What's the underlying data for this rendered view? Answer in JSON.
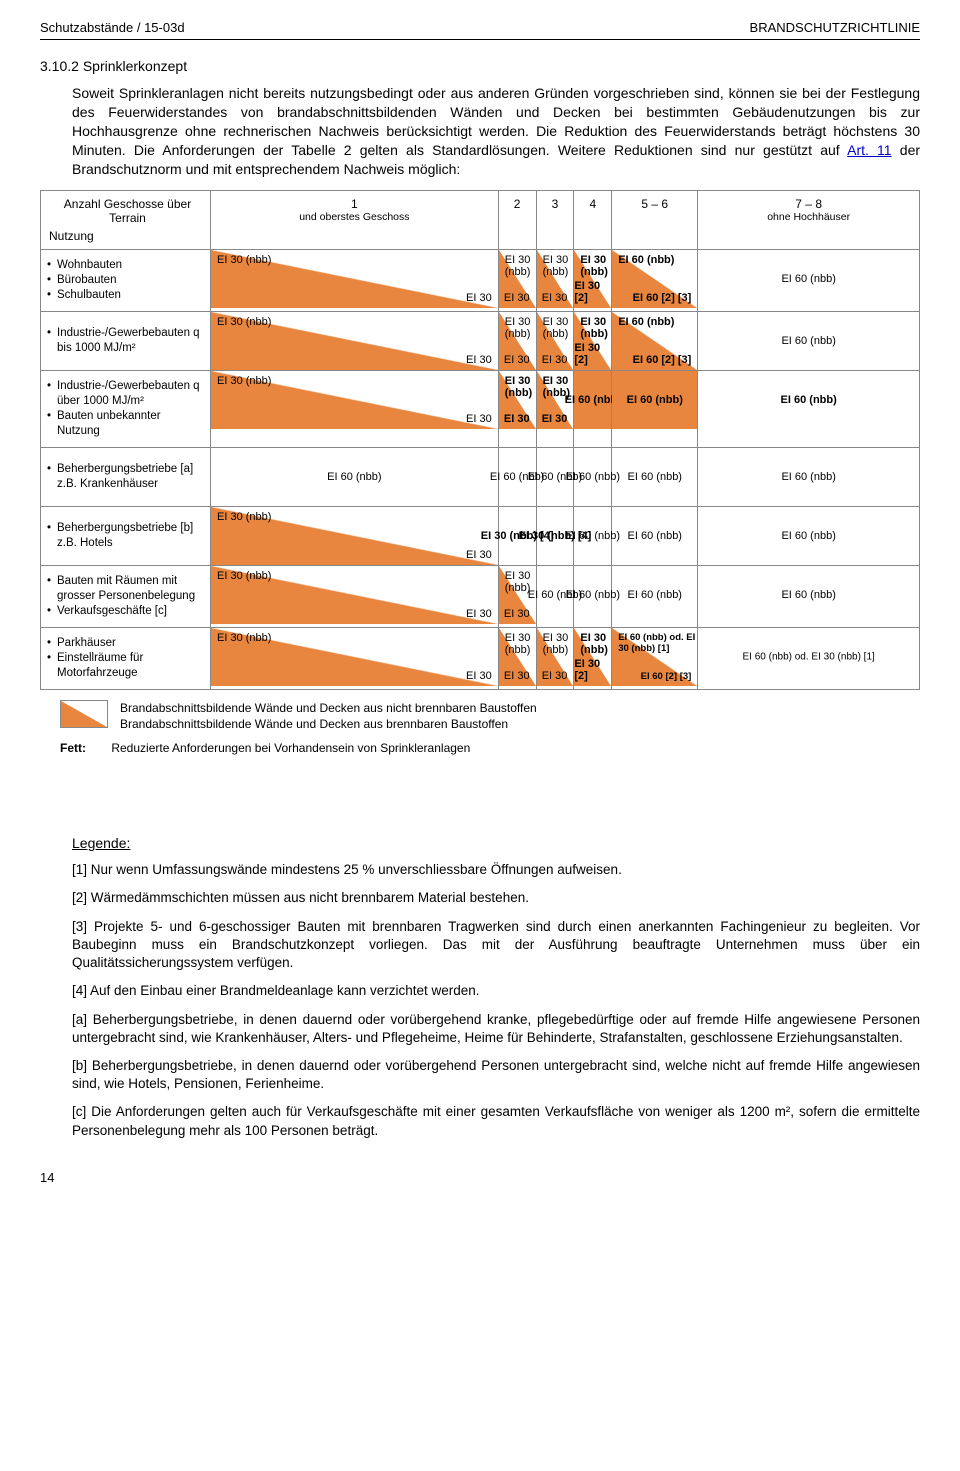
{
  "header": {
    "left": "Schutzabstände / 15-03d",
    "right": "BRANDSCHUTZRICHTLINIE"
  },
  "section": {
    "number": "3.10.2 Sprinklerkonzept",
    "para": "Soweit Sprinkleranlagen nicht bereits nutzungsbedingt oder aus anderen Gründen vorgeschrieben sind, können sie bei der Festlegung des Feuerwiderstandes von brandabschnittsbildenden Wänden und Decken bei bestimmten Gebäudenutzungen bis zur Hochhausgrenze ohne rechnerischen Nachweis berücksichtigt werden. Die Reduktion des Feuerwiderstands beträgt höchstens 30 Minuten. Die Anforderungen der Tabelle 2 gelten als Standardlösungen. Weitere Reduktionen sind nur gestützt auf ",
    "link": "Art. 11",
    "para2": " der Brandschutznorm und mit entsprechendem Nachweis möglich:"
  },
  "table": {
    "head_label": "Nutzung",
    "head_sub": "Anzahl Geschosse über Terrain",
    "cols": [
      {
        "n": "1",
        "sub": "und oberstes Geschoss"
      },
      {
        "n": "2",
        "sub": ""
      },
      {
        "n": "3",
        "sub": ""
      },
      {
        "n": "4",
        "sub": ""
      },
      {
        "n": "5 – 6",
        "sub": ""
      },
      {
        "n": "7 – 8",
        "sub": "ohne Hochhäuser"
      }
    ],
    "rows": [
      {
        "label_items": [
          "Wohnbauten",
          "Bürobauten",
          "Schulbauten"
        ],
        "cells": [
          {
            "t": "diag",
            "top": "EI 30 (nbb)",
            "bot": "EI 30"
          },
          {
            "t": "diag",
            "top": "EI 30 (nbb)",
            "bot": "EI 30"
          },
          {
            "t": "diag",
            "top": "EI 30 (nbb)",
            "bot": "EI 30"
          },
          {
            "t": "diag",
            "top": "EI 30 (nbb)",
            "bot": "EI 30 [2]",
            "bold": true
          },
          {
            "t": "diag",
            "top": "EI 60 (nbb)",
            "bot": "EI 60 [2] [3]",
            "bold": true
          },
          {
            "t": "plain",
            "mid": "EI 60 (nbb)"
          }
        ]
      },
      {
        "label_items": [
          "Industrie-/Gewerbebauten q bis 1000 MJ/m²"
        ],
        "cells": [
          {
            "t": "diag",
            "top": "EI 30 (nbb)",
            "bot": "EI 30"
          },
          {
            "t": "diag",
            "top": "EI 30 (nbb)",
            "bot": "EI 30"
          },
          {
            "t": "diag",
            "top": "EI 30 (nbb)",
            "bot": "EI 30"
          },
          {
            "t": "diag",
            "top": "EI 30 (nbb)",
            "bot": "EI 30 [2]",
            "bold": true
          },
          {
            "t": "diag",
            "top": "EI 60 (nbb)",
            "bot": "EI 60 [2] [3]",
            "bold": true
          },
          {
            "t": "plain",
            "mid": "EI 60 (nbb)"
          }
        ]
      },
      {
        "label_items": [
          "Industrie-/Gewerbebauten q über 1000 MJ/m²",
          "Bauten unbekannter Nutzung"
        ],
        "cells": [
          {
            "t": "diag",
            "top": "EI 30 (nbb)",
            "bot": "EI 30"
          },
          {
            "t": "diag",
            "top": "EI 30 (nbb)",
            "bot": "EI 30",
            "bold": true
          },
          {
            "t": "diag",
            "top": "EI 30 (nbb)",
            "bot": "EI 30",
            "bold": true
          },
          {
            "t": "orange",
            "mid": "EI 60 (nbb)",
            "bold": true
          },
          {
            "t": "orange",
            "mid": "EI 60 (nbb)",
            "bold": true
          },
          {
            "t": "plain",
            "mid": "EI 60 (nbb)",
            "bold": true
          }
        ]
      },
      {
        "label_items": [
          "Beherbergungsbetriebe [a] z.B. Krankenhäuser"
        ],
        "cells": [
          {
            "t": "plain",
            "mid": "EI 60 (nbb)"
          },
          {
            "t": "plain",
            "mid": "EI 60 (nbb)"
          },
          {
            "t": "plain",
            "mid": "EI 60 (nbb)"
          },
          {
            "t": "plain",
            "mid": "EI 60 (nbb)"
          },
          {
            "t": "plain",
            "mid": "EI 60 (nbb)"
          },
          {
            "t": "plain",
            "mid": "EI 60 (nbb)"
          }
        ]
      },
      {
        "label_items": [
          "Beherbergungsbetriebe [b] z.B. Hotels"
        ],
        "cells": [
          {
            "t": "diag",
            "top": "EI 30 (nbb)",
            "bot": "EI 30"
          },
          {
            "t": "plain",
            "mid": "EI 30 (nbb) [4]",
            "bold": true
          },
          {
            "t": "plain",
            "mid": "EI 30 (nbb) [4]",
            "bold": true
          },
          {
            "t": "plain",
            "mid": "EI 60 (nbb)"
          },
          {
            "t": "plain",
            "mid": "EI 60 (nbb)"
          },
          {
            "t": "plain",
            "mid": "EI 60 (nbb)"
          }
        ]
      },
      {
        "label_items": [
          "Bauten mit Räumen mit grosser Personenbelegung",
          "Verkaufsgeschäfte [c]"
        ],
        "cells": [
          {
            "t": "diag",
            "top": "EI 30 (nbb)",
            "bot": "EI 30"
          },
          {
            "t": "diag",
            "top": "EI 30 (nbb)",
            "bot": "EI 30"
          },
          {
            "t": "plain",
            "mid": "EI 60 (nbb)"
          },
          {
            "t": "plain",
            "mid": "EI 60 (nbb)"
          },
          {
            "t": "plain",
            "mid": "EI 60 (nbb)"
          },
          {
            "t": "plain",
            "mid": "EI 60 (nbb)"
          }
        ]
      },
      {
        "label_items": [
          "Parkhäuser",
          "Einstellräume für Motorfahrzeuge"
        ],
        "cells": [
          {
            "t": "diag",
            "top": "EI 30 (nbb)",
            "bot": "EI 30"
          },
          {
            "t": "diag",
            "top": "EI 30 (nbb)",
            "bot": "EI 30"
          },
          {
            "t": "diag",
            "top": "EI 30 (nbb)",
            "bot": "EI 30"
          },
          {
            "t": "diag",
            "top": "EI 30 (nbb)",
            "bot": "EI 30 [2]",
            "bold": true
          },
          {
            "t": "diag",
            "top": "EI 60 (nbb) od. EI 30 (nbb) [1]",
            "bot": "EI 60 [2] [3]",
            "bold": true,
            "small": true
          },
          {
            "t": "plain",
            "mid": "EI 60 (nbb) od. EI 30 (nbb) [1]",
            "small": true
          }
        ]
      }
    ]
  },
  "table_legend": {
    "line1": "Brandabschnittsbildende Wände und Decken aus nicht brennbaren Baustoffen",
    "line2": "Brandabschnittsbildende Wände und Decken aus brennbaren Baustoffen",
    "fett_label": "Fett:",
    "fett_text": "Reduzierte Anforderungen bei Vorhandensein von Sprinkleranlagen"
  },
  "legend": {
    "heading": "Legende:",
    "items": [
      {
        "k": "[1]",
        "t": "Nur wenn Umfassungswände mindestens 25 % unverschliessbare Öffnungen aufweisen."
      },
      {
        "k": "[2]",
        "t": "Wärmedämmschichten müssen aus nicht brennbarem Material bestehen."
      },
      {
        "k": "[3]",
        "t": "Projekte 5- und 6-geschossiger Bauten mit brennbaren Tragwerken sind durch einen anerkannten Fachingenieur zu begleiten. Vor Baubeginn muss ein Brandschutzkonzept vorliegen. Das mit der Ausführung beauftragte Unternehmen muss über ein Qualitätssicherungssystem verfügen."
      },
      {
        "k": "[4]",
        "t": "Auf den Einbau einer Brandmeldeanlage kann verzichtet werden."
      },
      {
        "k": "[a]",
        "t": "Beherbergungsbetriebe, in denen dauernd oder vorübergehend kranke, pflegebedürftige oder auf fremde Hilfe angewiesene Personen untergebracht sind, wie Krankenhäuser, Alters- und Pflegeheime, Heime für Behinderte, Strafanstalten, geschlossene Erziehungsanstalten."
      },
      {
        "k": "[b]",
        "t": "Beherbergungsbetriebe, in denen dauernd oder vorübergehend Personen untergebracht sind, welche nicht auf fremde Hilfe angewiesen sind, wie Hotels, Pensionen, Ferienheime."
      },
      {
        "k": "[c]",
        "t": "Die Anforderungen gelten auch für Verkaufsgeschäfte mit einer gesamten Verkaufsfläche von weniger als 1200 m², sofern die ermittelte Personenbelegung mehr als 100 Personen beträgt."
      }
    ]
  },
  "page_number": "14"
}
